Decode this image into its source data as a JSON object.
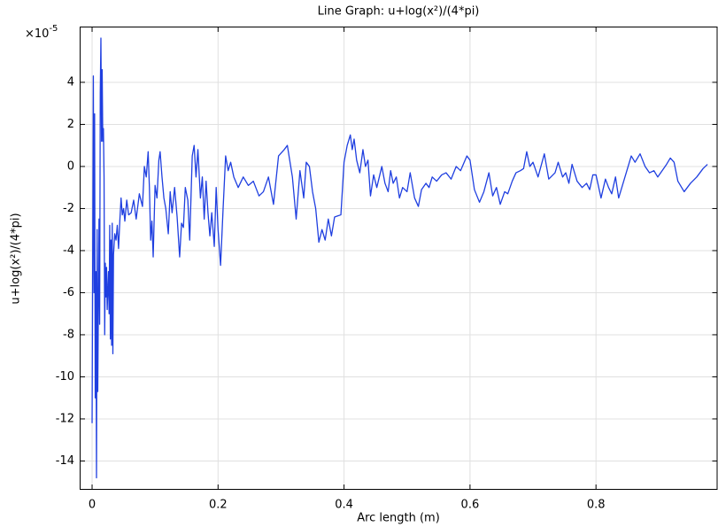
{
  "chart_data": {
    "type": "line",
    "title": "Line Graph: u+log(x²)/(4*pi)",
    "x_label": "Arc length (m)",
    "y_label": "u+log(x²)/(4*pi)",
    "y_multiplier": {
      "base": "×10",
      "exponent": "-5"
    },
    "color": "#1f3fe0",
    "grid": true,
    "xlim": [
      -0.0197,
      0.993
    ],
    "ylim": [
      -15.37,
      6.65
    ],
    "xticks": [
      0,
      0.2,
      0.4,
      0.6,
      0.8
    ],
    "yticks": [
      -14,
      -12,
      -10,
      -8,
      -6,
      -4,
      -2,
      0,
      2,
      4
    ],
    "x": [
      0.0,
      0.002,
      0.003,
      0.004,
      0.005,
      0.006,
      0.007,
      0.008,
      0.009,
      0.011,
      0.012,
      0.013,
      0.014,
      0.015,
      0.016,
      0.017,
      0.018,
      0.019,
      0.02,
      0.021,
      0.022,
      0.023,
      0.024,
      0.026,
      0.027,
      0.028,
      0.029,
      0.03,
      0.031,
      0.032,
      0.033,
      0.034,
      0.036,
      0.038,
      0.04,
      0.042,
      0.044,
      0.046,
      0.048,
      0.05,
      0.052,
      0.055,
      0.058,
      0.062,
      0.066,
      0.07,
      0.075,
      0.08,
      0.083,
      0.086,
      0.089,
      0.091,
      0.093,
      0.095,
      0.097,
      0.1,
      0.103,
      0.106,
      0.108,
      0.111,
      0.114,
      0.117,
      0.121,
      0.124,
      0.127,
      0.131,
      0.135,
      0.139,
      0.142,
      0.145,
      0.148,
      0.152,
      0.155,
      0.159,
      0.162,
      0.165,
      0.168,
      0.172,
      0.175,
      0.178,
      0.181,
      0.184,
      0.187,
      0.19,
      0.194,
      0.197,
      0.2,
      0.204,
      0.208,
      0.212,
      0.216,
      0.22,
      0.225,
      0.232,
      0.24,
      0.248,
      0.256,
      0.265,
      0.272,
      0.28,
      0.288,
      0.296,
      0.305,
      0.31,
      0.318,
      0.324,
      0.33,
      0.336,
      0.34,
      0.345,
      0.35,
      0.355,
      0.36,
      0.365,
      0.37,
      0.375,
      0.38,
      0.385,
      0.395,
      0.4,
      0.405,
      0.41,
      0.413,
      0.416,
      0.42,
      0.425,
      0.43,
      0.434,
      0.438,
      0.442,
      0.447,
      0.452,
      0.456,
      0.46,
      0.465,
      0.47,
      0.474,
      0.478,
      0.483,
      0.488,
      0.493,
      0.5,
      0.505,
      0.512,
      0.518,
      0.523,
      0.53,
      0.535,
      0.54,
      0.547,
      0.555,
      0.562,
      0.57,
      0.578,
      0.585,
      0.595,
      0.6,
      0.607,
      0.615,
      0.622,
      0.63,
      0.636,
      0.642,
      0.648,
      0.655,
      0.66,
      0.667,
      0.673,
      0.68,
      0.685,
      0.69,
      0.695,
      0.7,
      0.708,
      0.718,
      0.725,
      0.735,
      0.74,
      0.747,
      0.752,
      0.757,
      0.762,
      0.77,
      0.778,
      0.785,
      0.79,
      0.795,
      0.8,
      0.808,
      0.815,
      0.82,
      0.825,
      0.831,
      0.836,
      0.845,
      0.856,
      0.862,
      0.87,
      0.878,
      0.885,
      0.892,
      0.898,
      0.905,
      0.912,
      0.918,
      0.924,
      0.93,
      0.94,
      0.95,
      0.96,
      0.97,
      0.977
    ],
    "values": [
      -12.2,
      4.3,
      -6,
      2.5,
      -11,
      -5,
      -14.8,
      -3,
      -10.7,
      -2.5,
      -7.5,
      3.5,
      6.1,
      1.2,
      4.6,
      1.2,
      1.8,
      -0.5,
      -8.0,
      -4.6,
      -6.2,
      -4.8,
      -6.8,
      -5.0,
      -7.0,
      -2.8,
      -8.2,
      -3.5,
      -8.5,
      -2.7,
      -8.9,
      -4.2,
      -3.2,
      -3.5,
      -2.8,
      -3.9,
      -2.6,
      -1.5,
      -2.3,
      -2.0,
      -2.6,
      -1.6,
      -2.3,
      -2.2,
      -1.6,
      -2.5,
      -1.3,
      -1.9,
      0.0,
      -0.5,
      0.7,
      -1.0,
      -3.5,
      -2.6,
      -4.3,
      -0.9,
      -1.5,
      0.3,
      0.7,
      -0.5,
      -1.5,
      -2.0,
      -3.2,
      -1.2,
      -2.2,
      -1.0,
      -2.4,
      -4.3,
      -2.7,
      -2.9,
      -1.0,
      -1.6,
      -3.5,
      0.5,
      1.0,
      -0.5,
      0.8,
      -1.5,
      -0.5,
      -2.5,
      -0.7,
      -2.2,
      -3.3,
      -2.2,
      -3.8,
      -1.0,
      -3.0,
      -4.7,
      -2.0,
      0.5,
      -0.2,
      0.2,
      -0.5,
      -1.0,
      -0.5,
      -0.9,
      -0.7,
      -1.4,
      -1.2,
      -0.5,
      -1.8,
      0.5,
      0.8,
      1.0,
      -0.5,
      -2.5,
      -0.2,
      -1.5,
      0.2,
      0.0,
      -1.2,
      -2.0,
      -3.6,
      -3.0,
      -3.5,
      -2.5,
      -3.3,
      -2.4,
      -2.3,
      0.2,
      1.0,
      1.5,
      0.8,
      1.3,
      0.3,
      -0.3,
      0.8,
      0.0,
      0.3,
      -1.4,
      -0.4,
      -1.0,
      -0.5,
      0.0,
      -0.8,
      -1.2,
      -0.2,
      -0.8,
      -0.5,
      -1.5,
      -1.0,
      -1.2,
      -0.3,
      -1.5,
      -1.9,
      -1.1,
      -0.8,
      -1.0,
      -0.5,
      -0.7,
      -0.4,
      -0.3,
      -0.6,
      0.0,
      -0.2,
      0.5,
      0.3,
      -1.1,
      -1.7,
      -1.2,
      -0.3,
      -1.4,
      -1.0,
      -1.8,
      -1.2,
      -1.3,
      -0.7,
      -0.3,
      -0.2,
      -0.1,
      0.7,
      0.0,
      0.2,
      -0.5,
      0.6,
      -0.6,
      -0.3,
      0.2,
      -0.5,
      -0.3,
      -0.8,
      0.1,
      -0.7,
      -1.0,
      -0.8,
      -1.1,
      -0.4,
      -0.4,
      -1.5,
      -0.6,
      -1.0,
      -1.3,
      -0.5,
      -1.5,
      -0.6,
      0.5,
      0.2,
      0.6,
      0.0,
      -0.3,
      -0.2,
      -0.5,
      -0.2,
      0.1,
      0.4,
      0.2,
      -0.7,
      -1.2,
      -0.8,
      -0.5,
      -0.1,
      0.1
    ]
  }
}
